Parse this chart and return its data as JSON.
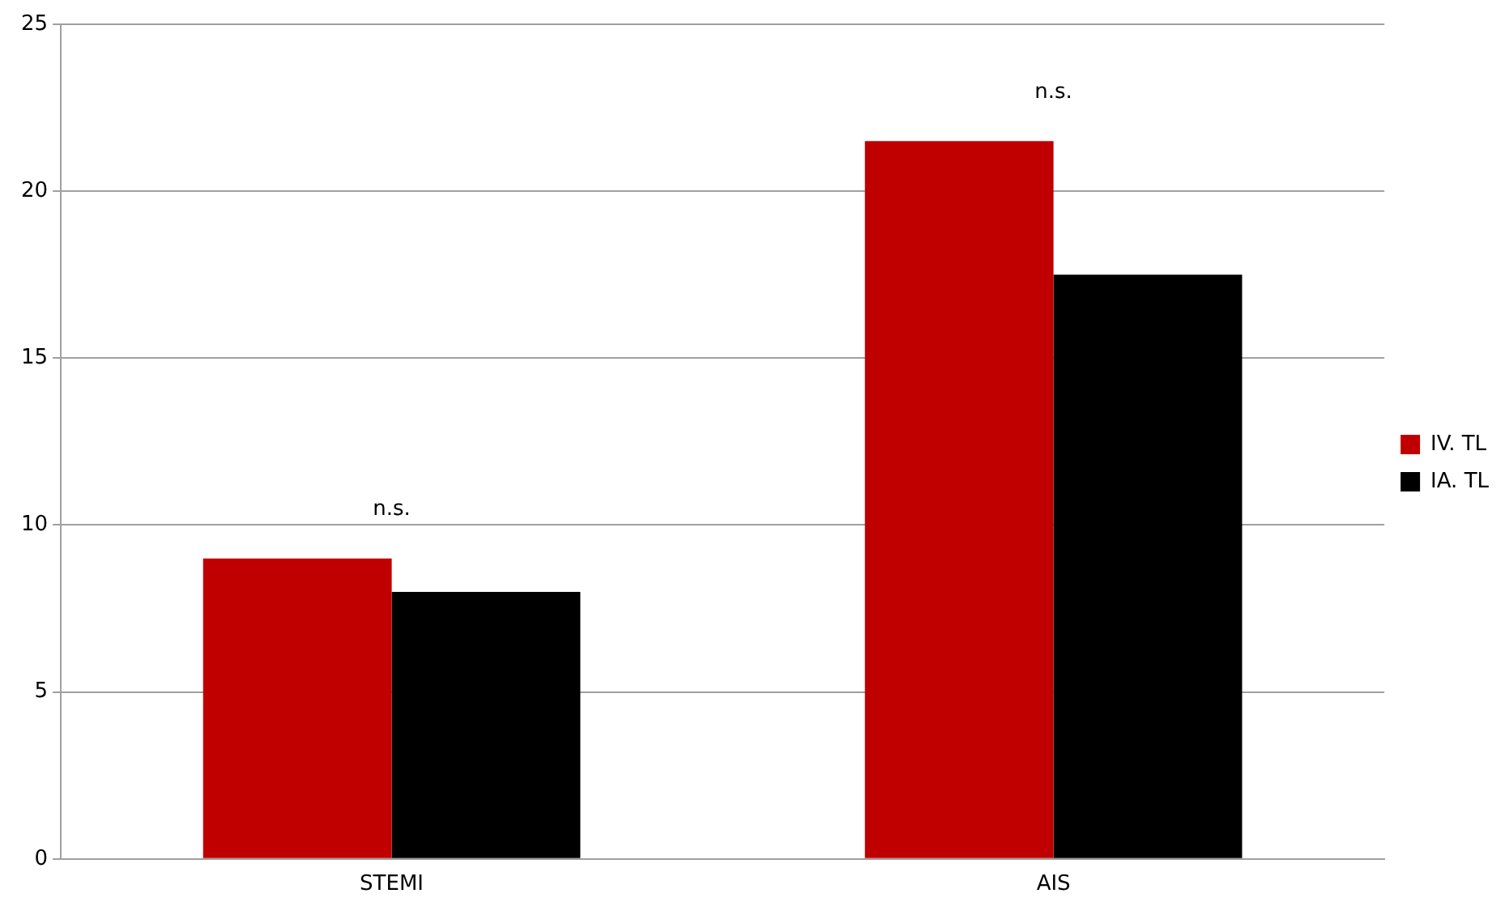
{
  "chart_data": {
    "type": "bar",
    "categories": [
      "STEMI",
      "AIS"
    ],
    "series": [
      {
        "name": "IV. TL",
        "color": "#c00000",
        "values": [
          9,
          21.5
        ]
      },
      {
        "name": "IA. TL",
        "color": "#000000",
        "values": [
          8,
          17.5
        ]
      }
    ],
    "ylim": [
      0,
      25
    ],
    "yticks": [
      0,
      5,
      10,
      15,
      20,
      25
    ],
    "grid": "y",
    "legend": "right",
    "annotations": [
      "n.s.",
      "n.s."
    ]
  }
}
